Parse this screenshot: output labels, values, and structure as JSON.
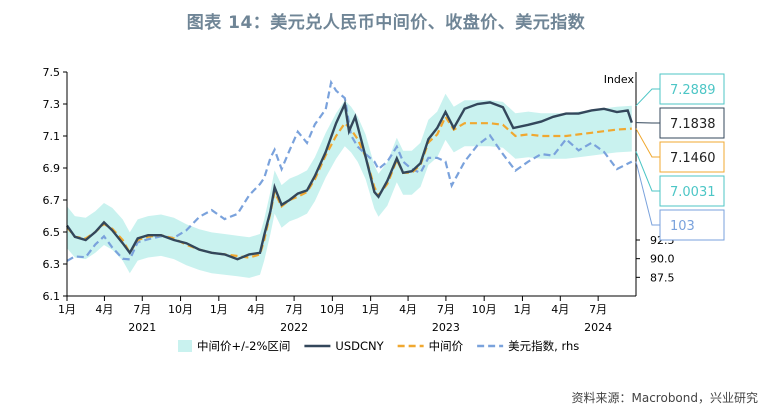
{
  "title": "图表 14：美元兑人民币中间价、收盘价、美元指数",
  "source": "资料来源：Macrobond，兴业研究",
  "colors": {
    "band": "#c9f2ef",
    "spot": "#33475b",
    "mid": "#f0a830",
    "dxy": "#7aa2dc",
    "axis": "#000000",
    "tag_mid": "#f0a830",
    "tag_band": "#4dc6c6",
    "tag_spot": "#33475b",
    "tag_dxy": "#7aa2dc"
  },
  "chart_data": {
    "type": "line",
    "x_range": [
      "2021-01-01",
      "2024-09-30"
    ],
    "y_left": {
      "min": 6.1,
      "max": 7.5,
      "ticks": [
        "7.5",
        "7.3",
        "7.1",
        "6.9",
        "6.7",
        "6.5",
        "6.3",
        "6.1"
      ]
    },
    "y_right": {
      "label": "Index",
      "min": 85.0,
      "max": 115.0,
      "ticks": [
        "92.5",
        "90.0",
        "87.5"
      ]
    },
    "x_ticks": [
      {
        "date": "2021-01-01",
        "label": "1月"
      },
      {
        "date": "2021-04-01",
        "label": "4月"
      },
      {
        "date": "2021-07-01",
        "label": "7月"
      },
      {
        "date": "2021-10-01",
        "label": "10月"
      },
      {
        "date": "2022-01-01",
        "label": "1月"
      },
      {
        "date": "2022-04-01",
        "label": "4月"
      },
      {
        "date": "2022-07-01",
        "label": "7月"
      },
      {
        "date": "2022-10-01",
        "label": "10月"
      },
      {
        "date": "2023-01-01",
        "label": "1月"
      },
      {
        "date": "2023-04-01",
        "label": "4月"
      },
      {
        "date": "2023-07-01",
        "label": "7月"
      },
      {
        "date": "2023-10-01",
        "label": "10月"
      },
      {
        "date": "2024-01-01",
        "label": "1月"
      },
      {
        "date": "2024-04-01",
        "label": "4月"
      },
      {
        "date": "2024-07-01",
        "label": "7月"
      }
    ],
    "year_labels": [
      {
        "date": "2021-07-01",
        "label": "2021"
      },
      {
        "date": "2022-07-01",
        "label": "2022"
      },
      {
        "date": "2023-07-01",
        "label": "2023"
      },
      {
        "date": "2024-07-01",
        "label": "2024"
      }
    ],
    "legend": [
      {
        "key": "band",
        "label": "中间价+/-2%区间"
      },
      {
        "key": "spot",
        "label": "USDCNY"
      },
      {
        "key": "mid",
        "label": "中间价"
      },
      {
        "key": "dxy",
        "label": "美元指数, rhs"
      }
    ],
    "end_labels": [
      {
        "key": "band_upper",
        "text": "7.2889"
      },
      {
        "key": "spot",
        "text": "7.1838"
      },
      {
        "key": "mid",
        "text": "7.1460"
      },
      {
        "key": "band_lower",
        "text": "7.0031"
      },
      {
        "key": "dxy",
        "text": "103"
      }
    ],
    "series": {
      "mid": [
        [
          "2021-01-01",
          6.53
        ],
        [
          "2021-01-20",
          6.47
        ],
        [
          "2021-02-15",
          6.46
        ],
        [
          "2021-03-10",
          6.5
        ],
        [
          "2021-03-31",
          6.55
        ],
        [
          "2021-04-20",
          6.52
        ],
        [
          "2021-05-15",
          6.45
        ],
        [
          "2021-06-01",
          6.37
        ],
        [
          "2021-06-20",
          6.45
        ],
        [
          "2021-07-15",
          6.47
        ],
        [
          "2021-08-15",
          6.48
        ],
        [
          "2021-09-15",
          6.46
        ],
        [
          "2021-10-15",
          6.42
        ],
        [
          "2021-11-15",
          6.39
        ],
        [
          "2021-12-15",
          6.37
        ],
        [
          "2022-01-15",
          6.36
        ],
        [
          "2022-02-15",
          6.35
        ],
        [
          "2022-03-15",
          6.34
        ],
        [
          "2022-04-10",
          6.36
        ],
        [
          "2022-04-20",
          6.45
        ],
        [
          "2022-05-05",
          6.62
        ],
        [
          "2022-05-15",
          6.75
        ],
        [
          "2022-06-01",
          6.66
        ],
        [
          "2022-06-20",
          6.7
        ],
        [
          "2022-07-10",
          6.72
        ],
        [
          "2022-08-01",
          6.75
        ],
        [
          "2022-08-20",
          6.83
        ],
        [
          "2022-09-15",
          6.98
        ],
        [
          "2022-10-10",
          7.1
        ],
        [
          "2022-10-31",
          7.18
        ],
        [
          "2022-11-15",
          7.14
        ],
        [
          "2022-12-01",
          7.08
        ],
        [
          "2022-12-20",
          6.97
        ],
        [
          "2023-01-10",
          6.78
        ],
        [
          "2023-01-20",
          6.73
        ],
        [
          "2023-02-10",
          6.8
        ],
        [
          "2023-03-05",
          6.95
        ],
        [
          "2023-03-20",
          6.87
        ],
        [
          "2023-04-10",
          6.87
        ],
        [
          "2023-05-01",
          6.92
        ],
        [
          "2023-05-20",
          7.06
        ],
        [
          "2023-06-10",
          7.11
        ],
        [
          "2023-06-30",
          7.22
        ],
        [
          "2023-07-20",
          7.14
        ],
        [
          "2023-08-15",
          7.18
        ],
        [
          "2023-09-15",
          7.18
        ],
        [
          "2023-10-15",
          7.18
        ],
        [
          "2023-11-15",
          7.17
        ],
        [
          "2023-12-15",
          7.1
        ],
        [
          "2024-01-15",
          7.11
        ],
        [
          "2024-02-15",
          7.1
        ],
        [
          "2024-03-15",
          7.1
        ],
        [
          "2024-04-15",
          7.1
        ],
        [
          "2024-05-15",
          7.11
        ],
        [
          "2024-06-15",
          7.12
        ],
        [
          "2024-07-15",
          7.13
        ],
        [
          "2024-08-15",
          7.14
        ],
        [
          "2024-09-20",
          7.146
        ]
      ],
      "spot": [
        [
          "2021-01-01",
          6.54
        ],
        [
          "2021-01-20",
          6.47
        ],
        [
          "2021-02-15",
          6.45
        ],
        [
          "2021-03-10",
          6.5
        ],
        [
          "2021-03-31",
          6.56
        ],
        [
          "2021-04-20",
          6.51
        ],
        [
          "2021-05-15",
          6.43
        ],
        [
          "2021-06-01",
          6.37
        ],
        [
          "2021-06-20",
          6.46
        ],
        [
          "2021-07-15",
          6.48
        ],
        [
          "2021-08-15",
          6.48
        ],
        [
          "2021-09-15",
          6.45
        ],
        [
          "2021-10-15",
          6.43
        ],
        [
          "2021-11-15",
          6.39
        ],
        [
          "2021-12-15",
          6.37
        ],
        [
          "2022-01-15",
          6.36
        ],
        [
          "2022-02-15",
          6.33
        ],
        [
          "2022-03-15",
          6.36
        ],
        [
          "2022-04-10",
          6.37
        ],
        [
          "2022-04-20",
          6.48
        ],
        [
          "2022-05-05",
          6.63
        ],
        [
          "2022-05-15",
          6.78
        ],
        [
          "2022-06-01",
          6.67
        ],
        [
          "2022-06-20",
          6.7
        ],
        [
          "2022-07-10",
          6.74
        ],
        [
          "2022-08-01",
          6.76
        ],
        [
          "2022-08-20",
          6.85
        ],
        [
          "2022-09-15",
          7.0
        ],
        [
          "2022-10-10",
          7.18
        ],
        [
          "2022-10-31",
          7.3
        ],
        [
          "2022-11-10",
          7.13
        ],
        [
          "2022-11-25",
          7.22
        ],
        [
          "2022-12-20",
          6.97
        ],
        [
          "2023-01-10",
          6.75
        ],
        [
          "2023-01-20",
          6.72
        ],
        [
          "2023-02-10",
          6.82
        ],
        [
          "2023-03-05",
          6.96
        ],
        [
          "2023-03-20",
          6.87
        ],
        [
          "2023-04-10",
          6.88
        ],
        [
          "2023-05-01",
          6.93
        ],
        [
          "2023-05-20",
          7.08
        ],
        [
          "2023-06-10",
          7.15
        ],
        [
          "2023-06-30",
          7.25
        ],
        [
          "2023-07-20",
          7.15
        ],
        [
          "2023-08-15",
          7.27
        ],
        [
          "2023-09-15",
          7.3
        ],
        [
          "2023-10-15",
          7.31
        ],
        [
          "2023-11-15",
          7.28
        ],
        [
          "2023-12-10",
          7.15
        ],
        [
          "2024-01-15",
          7.17
        ],
        [
          "2024-02-15",
          7.19
        ],
        [
          "2024-03-15",
          7.22
        ],
        [
          "2024-04-15",
          7.24
        ],
        [
          "2024-05-15",
          7.24
        ],
        [
          "2024-06-15",
          7.26
        ],
        [
          "2024-07-15",
          7.27
        ],
        [
          "2024-08-15",
          7.25
        ],
        [
          "2024-09-10",
          7.26
        ],
        [
          "2024-09-20",
          7.1838
        ]
      ],
      "dxy": [
        [
          "2021-01-01",
          89.7
        ],
        [
          "2021-01-20",
          90.3
        ],
        [
          "2021-02-15",
          90.2
        ],
        [
          "2021-03-10",
          91.9
        ],
        [
          "2021-03-31",
          93.0
        ],
        [
          "2021-04-20",
          91.5
        ],
        [
          "2021-05-15",
          90.0
        ],
        [
          "2021-06-01",
          89.9
        ],
        [
          "2021-06-20",
          92.2
        ],
        [
          "2021-07-15",
          92.6
        ],
        [
          "2021-08-15",
          93.0
        ],
        [
          "2021-09-15",
          92.8
        ],
        [
          "2021-10-15",
          93.8
        ],
        [
          "2021-11-15",
          95.6
        ],
        [
          "2021-12-15",
          96.5
        ],
        [
          "2022-01-15",
          95.3
        ],
        [
          "2022-02-15",
          96.0
        ],
        [
          "2022-03-15",
          98.5
        ],
        [
          "2022-04-10",
          100.0
        ],
        [
          "2022-04-20",
          100.8
        ],
        [
          "2022-05-05",
          103.5
        ],
        [
          "2022-05-15",
          104.6
        ],
        [
          "2022-06-01",
          102.0
        ],
        [
          "2022-06-20",
          104.5
        ],
        [
          "2022-07-10",
          107.0
        ],
        [
          "2022-08-01",
          105.5
        ],
        [
          "2022-08-20",
          108.0
        ],
        [
          "2022-09-15",
          110.0
        ],
        [
          "2022-09-28",
          113.6
        ],
        [
          "2022-10-10",
          112.5
        ],
        [
          "2022-10-31",
          111.5
        ],
        [
          "2022-11-15",
          106.5
        ],
        [
          "2022-12-01",
          105.0
        ],
        [
          "2022-12-20",
          104.0
        ],
        [
          "2023-01-10",
          103.0
        ],
        [
          "2023-01-20",
          102.0
        ],
        [
          "2023-02-10",
          103.0
        ],
        [
          "2023-03-05",
          105.0
        ],
        [
          "2023-03-20",
          103.0
        ],
        [
          "2023-04-10",
          102.0
        ],
        [
          "2023-05-01",
          101.5
        ],
        [
          "2023-05-20",
          103.5
        ],
        [
          "2023-06-10",
          103.5
        ],
        [
          "2023-06-30",
          103.0
        ],
        [
          "2023-07-15",
          99.8
        ],
        [
          "2023-08-15",
          103.0
        ],
        [
          "2023-09-15",
          105.2
        ],
        [
          "2023-10-15",
          106.5
        ],
        [
          "2023-11-15",
          104.0
        ],
        [
          "2023-12-15",
          101.8
        ],
        [
          "2024-01-15",
          103.0
        ],
        [
          "2024-02-15",
          104.0
        ],
        [
          "2024-03-15",
          103.8
        ],
        [
          "2024-04-15",
          106.0
        ],
        [
          "2024-05-15",
          104.5
        ],
        [
          "2024-06-15",
          105.5
        ],
        [
          "2024-07-15",
          104.3
        ],
        [
          "2024-08-15",
          102.0
        ],
        [
          "2024-09-20",
          103.0
        ]
      ]
    }
  }
}
